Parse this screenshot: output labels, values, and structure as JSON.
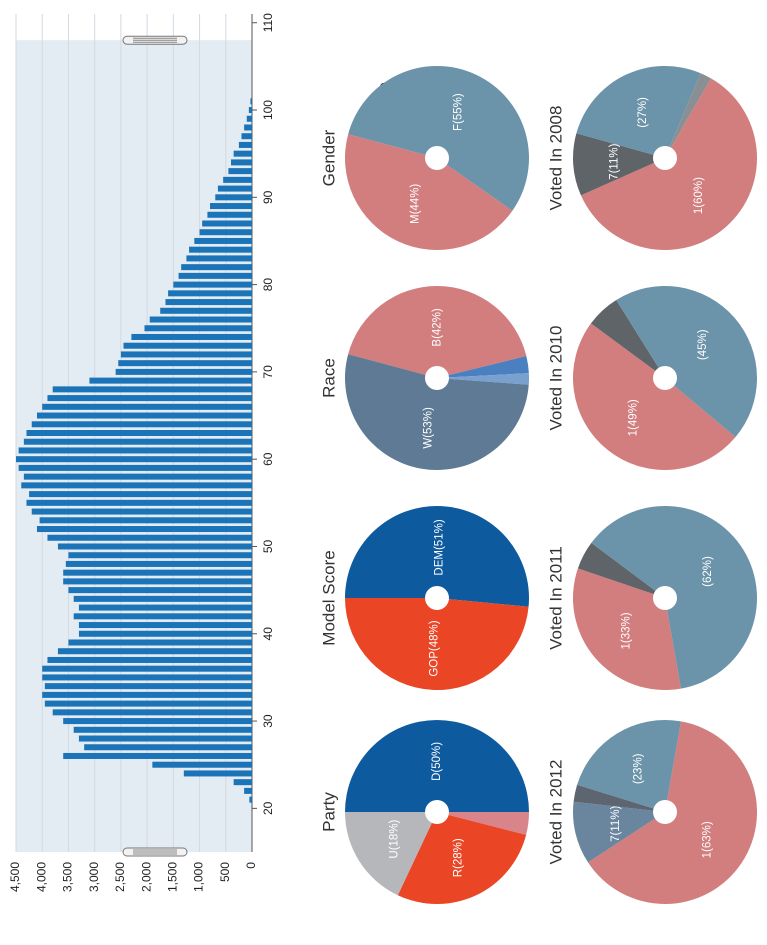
{
  "chart_data": [
    {
      "type": "bar",
      "title": "Age",
      "x": [
        21,
        22,
        23,
        24,
        25,
        26,
        27,
        28,
        29,
        30,
        31,
        32,
        33,
        34,
        35,
        36,
        37,
        38,
        39,
        40,
        41,
        42,
        43,
        44,
        45,
        46,
        47,
        48,
        49,
        50,
        51,
        52,
        53,
        54,
        55,
        56,
        57,
        58,
        59,
        60,
        61,
        62,
        63,
        64,
        65,
        66,
        67,
        68,
        69,
        70,
        71,
        72,
        73,
        74,
        75,
        76,
        77,
        78,
        79,
        80,
        81,
        82,
        83,
        84,
        85,
        86,
        87,
        88,
        89,
        90,
        91,
        92,
        93,
        94,
        95,
        96,
        97,
        98,
        99,
        100,
        101
      ],
      "values": [
        50,
        150,
        350,
        1300,
        1900,
        3600,
        3200,
        3300,
        3400,
        3600,
        3800,
        3950,
        4000,
        3950,
        4000,
        4000,
        3900,
        3700,
        3500,
        3300,
        3300,
        3400,
        3300,
        3400,
        3500,
        3600,
        3600,
        3550,
        3500,
        3700,
        3900,
        4100,
        4050,
        4200,
        4300,
        4250,
        4400,
        4350,
        4450,
        4500,
        4450,
        4350,
        4300,
        4200,
        4100,
        4000,
        3900,
        3800,
        3100,
        2600,
        2550,
        2500,
        2450,
        2300,
        2050,
        1950,
        1750,
        1650,
        1600,
        1500,
        1400,
        1350,
        1250,
        1200,
        1100,
        1000,
        950,
        850,
        800,
        700,
        650,
        550,
        450,
        400,
        350,
        250,
        200,
        150,
        100,
        60,
        30
      ],
      "color": "#1b73b8",
      "xlim": [
        15,
        111
      ],
      "xticks": [
        20,
        30,
        40,
        50,
        60,
        70,
        80,
        90,
        100,
        110
      ],
      "ylim": [
        0,
        4500
      ],
      "yticks": [
        0,
        500,
        {
          "value": 1000,
          "label": "1,000"
        },
        {
          "value": 1500,
          "label": "1,500"
        },
        {
          "value": 2000,
          "label": "2,000"
        },
        {
          "value": 2500,
          "label": "2,500"
        },
        {
          "value": 3000,
          "label": "3,000"
        },
        {
          "value": 3500,
          "label": "3,500"
        },
        {
          "value": 4000,
          "label": "4,000"
        },
        {
          "value": 4500,
          "label": "4,500"
        }
      ],
      "selection": [
        15,
        108
      ],
      "grid": true
    },
    {
      "type": "pie",
      "title": "Party",
      "values": [
        50,
        4,
        28,
        18
      ],
      "value_labels": [
        "D(50%)",
        null,
        "R(28%)",
        "U(18%)"
      ],
      "colors": [
        "#0d5a9e",
        "#d9848a",
        "#ea4525",
        "#b5b7bb"
      ]
    },
    {
      "type": "pie",
      "title": "Model Score",
      "values": [
        51,
        48
      ],
      "value_labels": [
        "DEM(51%)",
        "GOP(48%)"
      ],
      "colors": [
        "#0d5a9e",
        "#ea4525"
      ]
    },
    {
      "type": "pie",
      "title": "Race",
      "values": [
        42,
        3,
        2,
        53
      ],
      "value_labels": [
        "B(42%)",
        null,
        null,
        "W(53%)"
      ],
      "colors": [
        "#d27d7e",
        "#4a7fc0",
        "#7aa0d0",
        "#5e7a94"
      ]
    },
    {
      "type": "pie",
      "title": "Gender",
      "values": [
        55,
        44
      ],
      "value_labels": [
        "F(55%)",
        "M(44%)"
      ],
      "colors": [
        "#6b93a9",
        "#d27d7e"
      ]
    },
    {
      "type": "pie",
      "title": "Voted In 2012",
      "values": [
        63,
        11,
        3,
        23
      ],
      "value_labels": [
        "1(63%)",
        "7(11%)",
        null,
        "(23%)"
      ],
      "colors": [
        "#d27d7e",
        "#6a869e",
        "#5d6670",
        "#6b93a9"
      ]
    },
    {
      "type": "pie",
      "title": "Voted In 2011",
      "values": [
        33,
        5,
        62
      ],
      "value_labels": [
        "1(33%)",
        null,
        "(62%)"
      ],
      "colors": [
        "#d27d7e",
        "#5f6468",
        "#6b93a9"
      ]
    },
    {
      "type": "pie",
      "title": "Voted In 2010",
      "values": [
        49,
        6,
        45
      ],
      "value_labels": [
        "1(49%)",
        null,
        "(45%)"
      ],
      "colors": [
        "#d27d7e",
        "#5f6468",
        "#6b93a9"
      ]
    },
    {
      "type": "pie",
      "title": "Voted In 2008",
      "values": [
        60,
        11,
        27,
        2
      ],
      "value_labels": [
        "1(60%)",
        "7(11%)",
        "(27%)",
        null
      ],
      "colors": [
        "#d27d7e",
        "#5f6468",
        "#6b93a9",
        "#8a8f94"
      ]
    }
  ]
}
